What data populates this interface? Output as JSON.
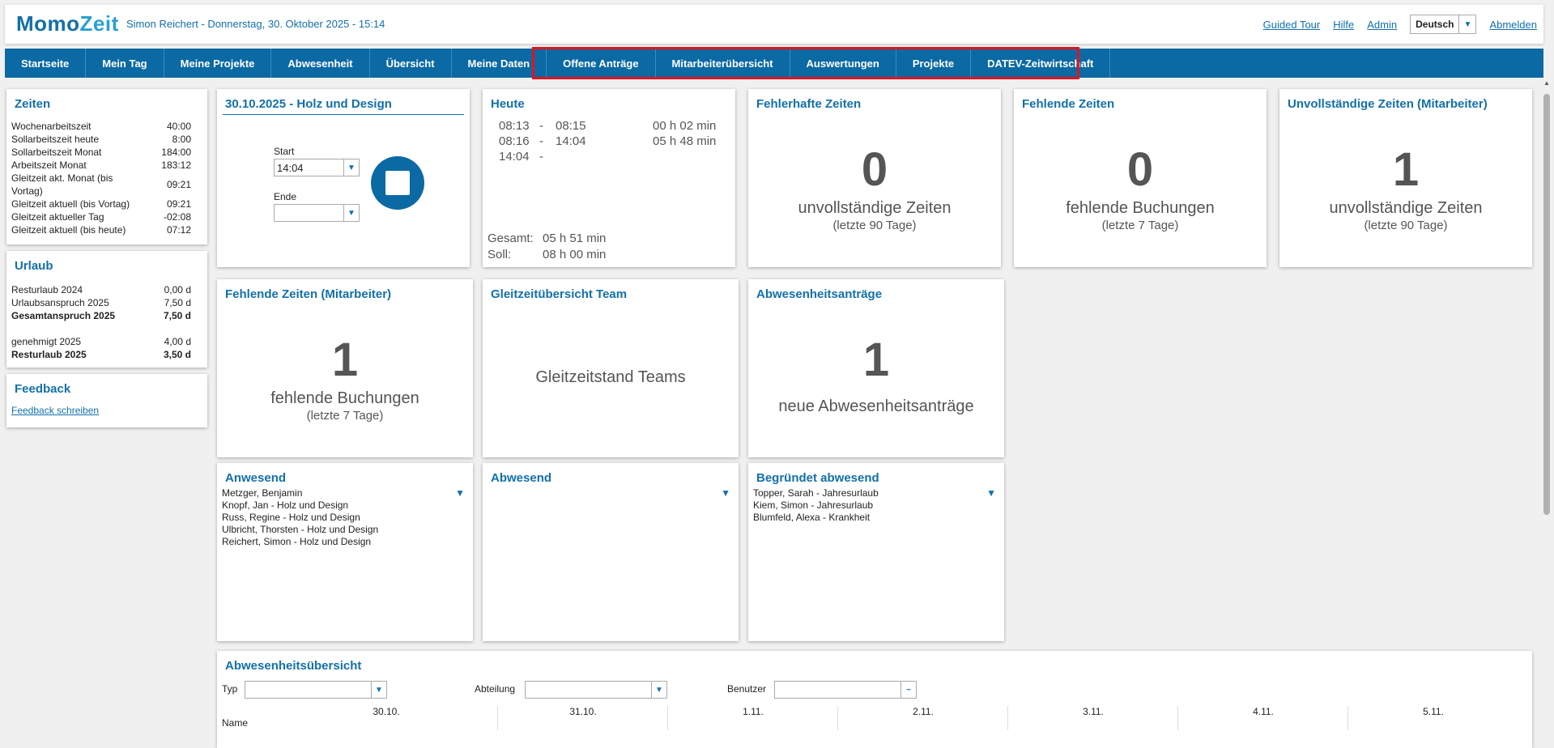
{
  "app": {
    "logo_a": "Momo",
    "logo_b": "Zeit",
    "userinfo": "Simon Reichert - Donnerstag, 30. Oktober 2025 - 15:14"
  },
  "toplinks": {
    "tour": "Guided Tour",
    "help": "Hilfe",
    "admin": "Admin",
    "language": "Deutsch",
    "logout": "Abmelden"
  },
  "nav": [
    "Startseite",
    "Mein Tag",
    "Meine Projekte",
    "Abwesenheit",
    "Übersicht",
    "Meine Daten",
    "Offene Anträge",
    "Mitarbeiterübersicht",
    "Auswertungen",
    "Projekte",
    "DATEV-Zeitwirtschaft"
  ],
  "zeiten": {
    "title": "Zeiten",
    "rows": [
      {
        "k": "Wochenarbeitszeit",
        "v": "40:00"
      },
      {
        "k": "Sollarbeitszeit heute",
        "v": "8:00"
      },
      {
        "k": "Sollarbeitszeit Monat",
        "v": "184:00"
      },
      {
        "k": "Arbeitszeit Monat",
        "v": "183:12"
      },
      {
        "k": "Gleitzeit akt. Monat (bis Vortag)",
        "v": "09:21"
      },
      {
        "k": "Gleitzeit aktuell (bis Vortag)",
        "v": "09:21"
      },
      {
        "k": "Gleitzeit aktueller Tag",
        "v": "-02:08"
      },
      {
        "k": "Gleitzeit aktuell (bis heute)",
        "v": "07:12"
      }
    ]
  },
  "urlaub": {
    "title": "Urlaub",
    "rows": [
      {
        "k": "Resturlaub 2024",
        "v": "0,00 d"
      },
      {
        "k": "Urlaubsanspruch 2025",
        "v": "7,50 d"
      },
      {
        "k": "Gesamtanspruch 2025",
        "v": "7,50 d"
      },
      {
        "k": "genehmigt 2025",
        "v": "4,00 d"
      },
      {
        "k": "Resturlaub 2025",
        "v": "3,50 d"
      }
    ]
  },
  "feedback": {
    "title": "Feedback",
    "link": "Feedback schreiben"
  },
  "stamp": {
    "title": "30.10.2025 - Holz und Design",
    "start_label": "Start",
    "start_value": "14:04",
    "end_label": "Ende",
    "end_value": ""
  },
  "heute": {
    "title": "Heute",
    "entries": [
      {
        "from": "08:13",
        "sep": "-",
        "to": "08:15",
        "dur": "00 h 02 min"
      },
      {
        "from": "08:16",
        "sep": "-",
        "to": "14:04",
        "dur": "05 h 48 min"
      },
      {
        "from": "14:04",
        "sep": "-",
        "to": "",
        "dur": ""
      }
    ],
    "gesamt_label": "Gesamt:",
    "gesamt": "05 h 51 min",
    "soll_label": "Soll:",
    "soll": "08 h 00 min"
  },
  "widgets": {
    "fehlerhaft": {
      "title": "Fehlerhafte Zeiten",
      "num": "0",
      "txt": "unvollständige Zeiten",
      "sub": "(letzte 90 Tage)"
    },
    "fehlend": {
      "title": "Fehlende Zeiten",
      "num": "0",
      "txt": "fehlende Buchungen",
      "sub": "(letzte 7 Tage)"
    },
    "unvollst": {
      "title": "Unvollständige Zeiten (Mitarbeiter)",
      "num": "1",
      "txt": "unvollständige Zeiten",
      "sub": "(letzte 90 Tage)"
    },
    "fehlendma": {
      "title": "Fehlende Zeiten (Mitarbeiter)",
      "num": "1",
      "txt": "fehlende Buchungen",
      "sub": "(letzte 7 Tage)"
    },
    "gleitteam": {
      "title": "Gleitzeitübersicht Team",
      "txt": "Gleitzeitstand Teams"
    },
    "abwantr": {
      "title": "Abwesenheitsanträge",
      "num": "1",
      "txt": "neue Abwesenheitsanträge"
    }
  },
  "anwesend": {
    "title": "Anwesend",
    "items": [
      "Metzger, Benjamin",
      "Knopf, Jan - Holz und Design",
      "Russ, Regine - Holz und Design",
      "Ulbricht, Thorsten - Holz und Design",
      "Reichert, Simon - Holz und Design"
    ]
  },
  "abwesend": {
    "title": "Abwesend"
  },
  "begruendet": {
    "title": "Begründet abwesend",
    "items": [
      "Topper, Sarah - Jahresurlaub",
      "Kiem, Simon - Jahresurlaub",
      "Blumfeld, Alexa - Krankheit"
    ]
  },
  "abwuebersicht": {
    "title": "Abwesenheitsübersicht",
    "typ": "Typ",
    "abteilung": "Abteilung",
    "benutzer": "Benutzer",
    "name": "Name",
    "days": [
      "30.10.",
      "31.10.",
      "1.11.",
      "2.11.",
      "3.11.",
      "4.11.",
      "5.11."
    ]
  },
  "colors": {
    "brand": "#1270aa",
    "nav": "#0b69a3",
    "highlight": "#e0141e"
  }
}
